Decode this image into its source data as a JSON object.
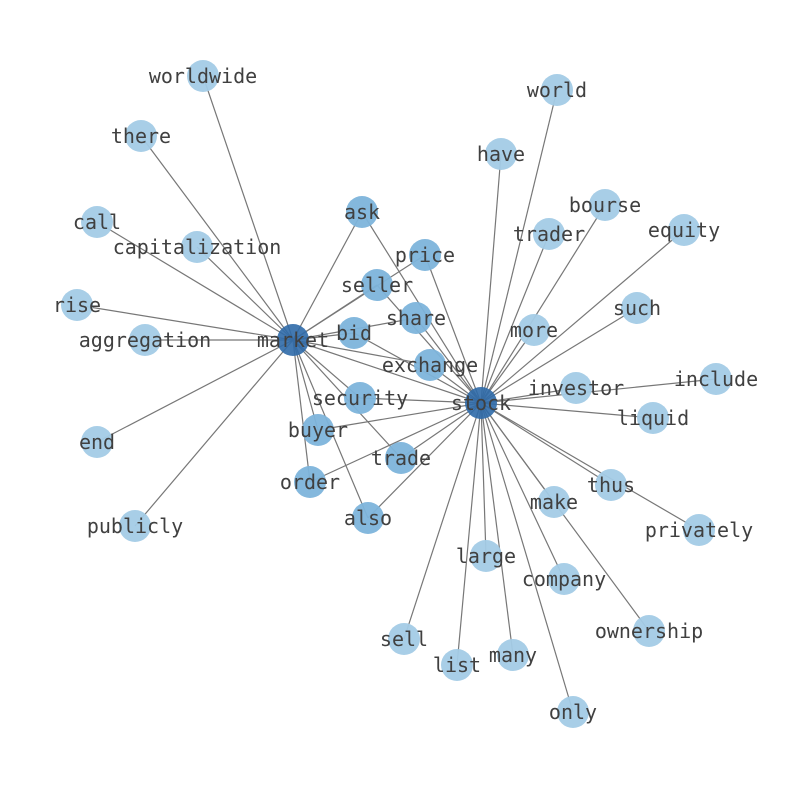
{
  "graph": {
    "type": "network",
    "colors": {
      "hub": "#2f6aa8",
      "shared": "#7db4db",
      "leaf": "#a3cbe6",
      "edge": "#777777",
      "label": "#404040"
    },
    "hubs": [
      "market",
      "stock"
    ],
    "nodes": [
      {
        "id": "market",
        "group": "hub"
      },
      {
        "id": "stock",
        "group": "hub"
      },
      {
        "id": "worldwide",
        "group": "leaf"
      },
      {
        "id": "there",
        "group": "leaf"
      },
      {
        "id": "call",
        "group": "leaf"
      },
      {
        "id": "capitalization",
        "group": "leaf"
      },
      {
        "id": "rise",
        "group": "leaf"
      },
      {
        "id": "aggregation",
        "group": "leaf"
      },
      {
        "id": "end",
        "group": "leaf"
      },
      {
        "id": "publicly",
        "group": "leaf"
      },
      {
        "id": "ask",
        "group": "shared"
      },
      {
        "id": "price",
        "group": "shared"
      },
      {
        "id": "seller",
        "group": "shared"
      },
      {
        "id": "share",
        "group": "shared"
      },
      {
        "id": "bid",
        "group": "shared"
      },
      {
        "id": "exchange",
        "group": "shared"
      },
      {
        "id": "security",
        "group": "shared"
      },
      {
        "id": "buyer",
        "group": "shared"
      },
      {
        "id": "trade",
        "group": "shared"
      },
      {
        "id": "order",
        "group": "shared"
      },
      {
        "id": "also",
        "group": "shared"
      },
      {
        "id": "world",
        "group": "leaf"
      },
      {
        "id": "have",
        "group": "leaf"
      },
      {
        "id": "bourse",
        "group": "leaf"
      },
      {
        "id": "trader",
        "group": "leaf"
      },
      {
        "id": "equity",
        "group": "leaf"
      },
      {
        "id": "such",
        "group": "leaf"
      },
      {
        "id": "more",
        "group": "leaf"
      },
      {
        "id": "investor",
        "group": "leaf"
      },
      {
        "id": "include",
        "group": "leaf"
      },
      {
        "id": "liquid",
        "group": "leaf"
      },
      {
        "id": "thus",
        "group": "leaf"
      },
      {
        "id": "privately",
        "group": "leaf"
      },
      {
        "id": "make",
        "group": "leaf"
      },
      {
        "id": "large",
        "group": "leaf"
      },
      {
        "id": "company",
        "group": "leaf"
      },
      {
        "id": "ownership",
        "group": "leaf"
      },
      {
        "id": "sell",
        "group": "leaf"
      },
      {
        "id": "many",
        "group": "leaf"
      },
      {
        "id": "list",
        "group": "leaf"
      },
      {
        "id": "only",
        "group": "leaf"
      }
    ],
    "edges": [
      [
        "market",
        "stock"
      ],
      [
        "market",
        "worldwide"
      ],
      [
        "market",
        "there"
      ],
      [
        "market",
        "call"
      ],
      [
        "market",
        "capitalization"
      ],
      [
        "market",
        "rise"
      ],
      [
        "market",
        "aggregation"
      ],
      [
        "market",
        "end"
      ],
      [
        "market",
        "publicly"
      ],
      [
        "market",
        "ask"
      ],
      [
        "market",
        "price"
      ],
      [
        "market",
        "seller"
      ],
      [
        "market",
        "share"
      ],
      [
        "market",
        "bid"
      ],
      [
        "market",
        "exchange"
      ],
      [
        "market",
        "security"
      ],
      [
        "market",
        "buyer"
      ],
      [
        "market",
        "trade"
      ],
      [
        "market",
        "order"
      ],
      [
        "market",
        "also"
      ],
      [
        "stock",
        "ask"
      ],
      [
        "stock",
        "price"
      ],
      [
        "stock",
        "seller"
      ],
      [
        "stock",
        "share"
      ],
      [
        "stock",
        "bid"
      ],
      [
        "stock",
        "exchange"
      ],
      [
        "stock",
        "security"
      ],
      [
        "stock",
        "buyer"
      ],
      [
        "stock",
        "trade"
      ],
      [
        "stock",
        "order"
      ],
      [
        "stock",
        "also"
      ],
      [
        "stock",
        "world"
      ],
      [
        "stock",
        "have"
      ],
      [
        "stock",
        "bourse"
      ],
      [
        "stock",
        "trader"
      ],
      [
        "stock",
        "equity"
      ],
      [
        "stock",
        "such"
      ],
      [
        "stock",
        "more"
      ],
      [
        "stock",
        "investor"
      ],
      [
        "stock",
        "include"
      ],
      [
        "stock",
        "liquid"
      ],
      [
        "stock",
        "thus"
      ],
      [
        "stock",
        "privately"
      ],
      [
        "stock",
        "make"
      ],
      [
        "stock",
        "large"
      ],
      [
        "stock",
        "company"
      ],
      [
        "stock",
        "ownership"
      ],
      [
        "stock",
        "sell"
      ],
      [
        "stock",
        "many"
      ],
      [
        "stock",
        "list"
      ],
      [
        "stock",
        "only"
      ]
    ]
  }
}
